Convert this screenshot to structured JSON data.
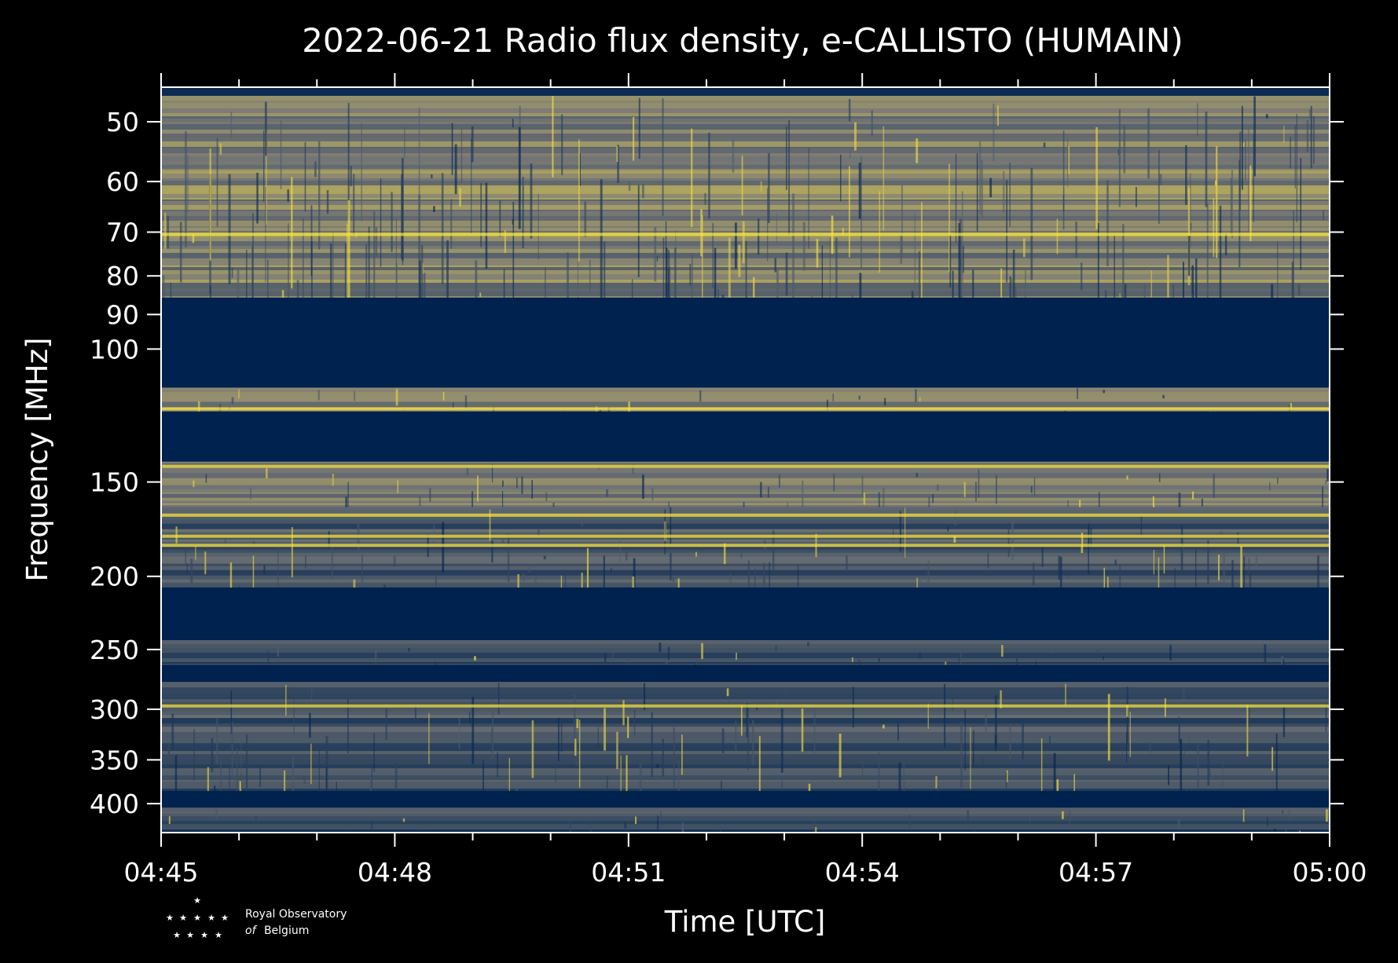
{
  "chart_data": {
    "type": "heatmap",
    "title": "2022-06-21 Radio flux density, e-CALLISTO (HUMAIN)",
    "xlabel": "Time [UTC]",
    "ylabel": "Frequency [MHz]",
    "x_range": [
      "04:45",
      "05:00"
    ],
    "y_range_mhz": [
      45,
      437
    ],
    "y_scale": "log",
    "y_inverted": true,
    "x_ticks": [
      "04:45",
      "04:48",
      "04:51",
      "04:54",
      "04:57",
      "05:00"
    ],
    "y_ticks": [
      50,
      60,
      70,
      80,
      90,
      100,
      150,
      200,
      250,
      300,
      350,
      400
    ],
    "colormap": "cividis",
    "colors": {
      "low": "#00224e",
      "mid": "#7c7b78",
      "high": "#fee838"
    },
    "bands": [
      {
        "f_start": 45.0,
        "f_end": 46.2,
        "intensity": 0.05
      },
      {
        "f_start": 46.2,
        "f_end": 85.5,
        "intensity": 0.52
      },
      {
        "f_start": 85.5,
        "f_end": 112.5,
        "intensity": 0.0
      },
      {
        "f_start": 112.5,
        "f_end": 121.0,
        "intensity": 0.5
      },
      {
        "f_start": 121.0,
        "f_end": 141.0,
        "intensity": 0.0
      },
      {
        "f_start": 141.0,
        "f_end": 162.0,
        "intensity": 0.48
      },
      {
        "f_start": 162.0,
        "f_end": 207.0,
        "intensity": 0.3
      },
      {
        "f_start": 207.0,
        "f_end": 243.0,
        "intensity": 0.0
      },
      {
        "f_start": 243.0,
        "f_end": 262.0,
        "intensity": 0.25
      },
      {
        "f_start": 262.0,
        "f_end": 276.0,
        "intensity": 0.0
      },
      {
        "f_start": 276.0,
        "f_end": 385.0,
        "intensity": 0.28
      },
      {
        "f_start": 385.0,
        "f_end": 405.0,
        "intensity": 0.0
      },
      {
        "f_start": 405.0,
        "f_end": 437.0,
        "intensity": 0.22
      }
    ],
    "bright_lines_mhz": [
      70.5,
      120.0,
      143.0,
      166.0,
      177.0,
      182.0,
      297.0
    ]
  },
  "logo": {
    "line1": "Royal Observatory",
    "line2_italic": "of",
    "line2": "Belgium"
  }
}
